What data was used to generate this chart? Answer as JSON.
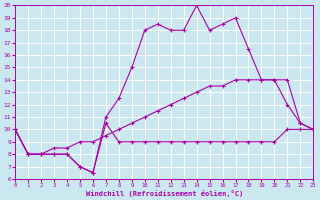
{
  "xlabel": "Windchill (Refroidissement éolien,°C)",
  "xlim": [
    0,
    23
  ],
  "ylim": [
    6,
    20
  ],
  "yticks": [
    6,
    7,
    8,
    9,
    10,
    11,
    12,
    13,
    14,
    15,
    16,
    17,
    18,
    19,
    20
  ],
  "xticks": [
    0,
    1,
    2,
    3,
    4,
    5,
    6,
    7,
    8,
    9,
    10,
    11,
    12,
    13,
    14,
    15,
    16,
    17,
    18,
    19,
    20,
    21,
    22,
    23
  ],
  "bg_color": "#cbe8f0",
  "line_color": "#aa00aa",
  "grid_color": "#ffffff",
  "line1_x": [
    0,
    1,
    2,
    3,
    4,
    5,
    6,
    7,
    8,
    9,
    10,
    11,
    12,
    13,
    14,
    15,
    16,
    17,
    18,
    19,
    20,
    21,
    22,
    23
  ],
  "line1_y": [
    10,
    8,
    8,
    8,
    8,
    7,
    6.5,
    10.5,
    9,
    9,
    9,
    9,
    9,
    9,
    9,
    9,
    9,
    9,
    9,
    9,
    9,
    10,
    10,
    10
  ],
  "line2_x": [
    0,
    1,
    2,
    3,
    4,
    5,
    6,
    7,
    8,
    9,
    10,
    11,
    12,
    13,
    14,
    15,
    16,
    17,
    18,
    19,
    20,
    21,
    22,
    23
  ],
  "line2_y": [
    10,
    8,
    8,
    8,
    8,
    7,
    6.5,
    11,
    12.5,
    15,
    18,
    18.5,
    18,
    18,
    20,
    18,
    18.5,
    19,
    16.5,
    14,
    14,
    12,
    10.5,
    10
  ],
  "line3_x": [
    0,
    1,
    2,
    3,
    4,
    5,
    6,
    7,
    8,
    9,
    10,
    11,
    12,
    13,
    14,
    15,
    16,
    17,
    18,
    19,
    20,
    21,
    22,
    23
  ],
  "line3_y": [
    10,
    8,
    8,
    8.5,
    8.5,
    9,
    9,
    9.5,
    10,
    10.5,
    11,
    11.5,
    12,
    12.5,
    13,
    13.5,
    13.5,
    14,
    14,
    14,
    14,
    14,
    10.5,
    10
  ],
  "marker": "+"
}
